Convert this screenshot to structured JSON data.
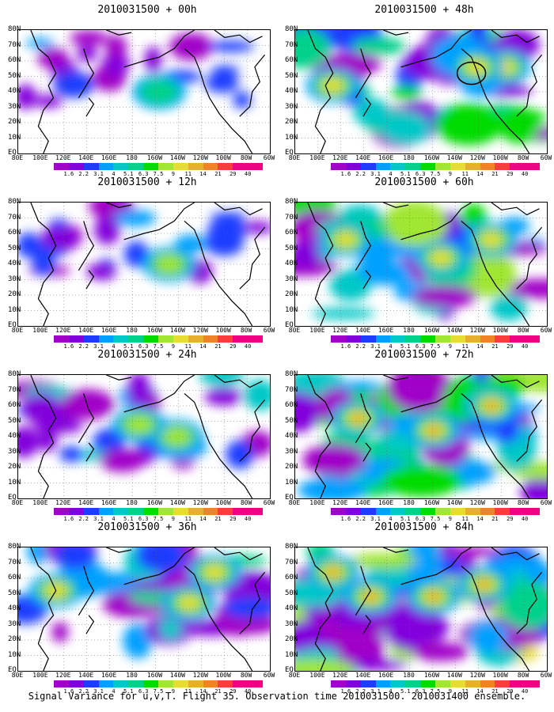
{
  "panels": [
    {
      "title": "2010031500 + 00h",
      "lead": "00h",
      "intensity": 0.15,
      "hot": [
        [
          0.56,
          0.5
        ]
      ]
    },
    {
      "title": "2010031500 + 12h",
      "lead": "12h",
      "intensity": 0.25,
      "hot": [
        [
          0.6,
          0.5
        ]
      ]
    },
    {
      "title": "2010031500 + 24h",
      "lead": "24h",
      "intensity": 0.4,
      "hot": [
        [
          0.63,
          0.5
        ],
        [
          0.48,
          0.4
        ]
      ]
    },
    {
      "title": "2010031500 + 36h",
      "lead": "36h",
      "intensity": 0.55,
      "hot": [
        [
          0.68,
          0.45
        ],
        [
          0.78,
          0.2
        ],
        [
          0.15,
          0.35
        ]
      ]
    },
    {
      "title": "2010031500 + 48h",
      "lead": "48h",
      "intensity": 0.7,
      "hot": [
        [
          0.83,
          0.3
        ],
        [
          0.72,
          0.3
        ],
        [
          0.15,
          0.45
        ]
      ]
    },
    {
      "title": "2010031500 + 60h",
      "lead": "60h",
      "intensity": 0.8,
      "hot": [
        [
          0.78,
          0.3
        ],
        [
          0.58,
          0.45
        ],
        [
          0.2,
          0.3
        ]
      ]
    },
    {
      "title": "2010031500 + 72h",
      "lead": "72h",
      "intensity": 0.9,
      "hot": [
        [
          0.78,
          0.25
        ],
        [
          0.55,
          0.45
        ],
        [
          0.25,
          0.35
        ]
      ]
    },
    {
      "title": "2010031500 + 84h",
      "lead": "84h",
      "intensity": 1.0,
      "hot": [
        [
          0.75,
          0.3
        ],
        [
          0.55,
          0.4
        ],
        [
          0.3,
          0.4
        ],
        [
          0.15,
          0.2
        ]
      ]
    }
  ],
  "lon_labels": [
    "80E",
    "100E",
    "120E",
    "140E",
    "160E",
    "180",
    "160W",
    "140W",
    "120W",
    "100W",
    "80W",
    "60W"
  ],
  "lat_labels": [
    "80N",
    "70N",
    "60N",
    "50N",
    "40N",
    "30N",
    "20N",
    "10N",
    "EQ"
  ],
  "colorbar": {
    "colors": [
      "#a000c8",
      "#8200dc",
      "#1e3cff",
      "#00a0ff",
      "#00c8c8",
      "#00d28c",
      "#00dc00",
      "#a0e632",
      "#e6dc32",
      "#e6af2d",
      "#f08228",
      "#fa3c3c",
      "#f00082"
    ],
    "labels": [
      "1.6",
      "2.2",
      "3.1",
      "4",
      "5.1",
      "6.3",
      "7.5",
      "9",
      "11",
      "14",
      "21",
      "29",
      "40"
    ]
  },
  "caption": "Signal Variance for u,v,T. Flight 35. Observation time 2010031500. 2010031400 ensemble."
}
